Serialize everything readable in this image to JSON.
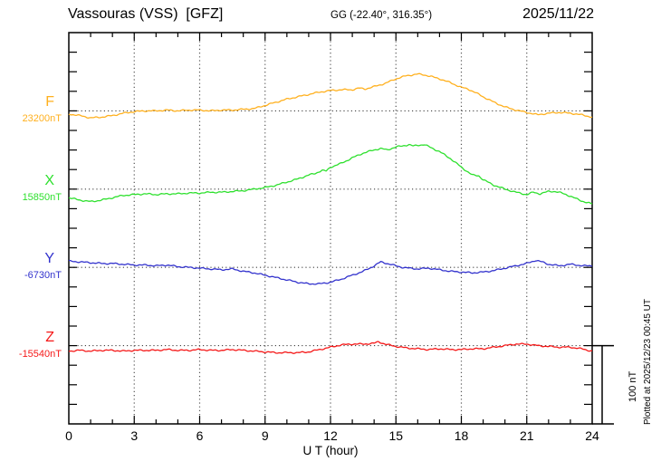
{
  "header": {
    "title": "Vassouras (VSS)  [GFZ]",
    "coordinates": "GG (-22.40°, 316.35°)",
    "date": "2025/11/22"
  },
  "axis": {
    "xlabel": "U T (hour)"
  },
  "scalebar": {
    "label": "100 nT",
    "nT": 100
  },
  "plotted_note": "Plotted at 2025/12/23 00:45 UT",
  "chart_data": {
    "type": "line",
    "title": "Vassouras (VSS)  [GFZ]",
    "subtitle": "GG (-22.40°, 316.35°)",
    "date": "2025/11/22",
    "xlabel": "U T (hour)",
    "x_range": [
      0,
      24
    ],
    "x_ticks": [
      0,
      3,
      6,
      9,
      12,
      15,
      18,
      21,
      24
    ],
    "x_minor_tick_hours": 1,
    "y_tick_interval_nT": 25,
    "scale_bar_nT": 100,
    "grid": "dotted vertical lines every 3 h; dotted horizontal baseline per channel",
    "legend_position": "left margin, one colored label per channel",
    "series": [
      {
        "name": "F",
        "label": "F",
        "base_label": "23200nT",
        "base_nT": 23200,
        "color": "#FFB01E",
        "points_hour_offset_nT": [
          [
            0,
            -4
          ],
          [
            0.5,
            -6
          ],
          [
            1,
            -9
          ],
          [
            1.5,
            -8
          ],
          [
            2,
            -6
          ],
          [
            2.5,
            -3
          ],
          [
            3,
            -1
          ],
          [
            3.5,
            0
          ],
          [
            4,
            0
          ],
          [
            4.5,
            1
          ],
          [
            5,
            0
          ],
          [
            5.5,
            1
          ],
          [
            6,
            1
          ],
          [
            6.5,
            0
          ],
          [
            7,
            1
          ],
          [
            7.5,
            1
          ],
          [
            8,
            2
          ],
          [
            8.5,
            3
          ],
          [
            9,
            7
          ],
          [
            9.5,
            11
          ],
          [
            10,
            15
          ],
          [
            10.5,
            18
          ],
          [
            11,
            21
          ],
          [
            11.5,
            24
          ],
          [
            12,
            26
          ],
          [
            12.5,
            27
          ],
          [
            13,
            27
          ],
          [
            13.3,
            29
          ],
          [
            13.6,
            28
          ],
          [
            14,
            31
          ],
          [
            14.5,
            35
          ],
          [
            15,
            41
          ],
          [
            15.5,
            45
          ],
          [
            16,
            47
          ],
          [
            16.3,
            46
          ],
          [
            16.6,
            44
          ],
          [
            17,
            41
          ],
          [
            17.5,
            36
          ],
          [
            18,
            30
          ],
          [
            18.3,
            28
          ],
          [
            18.6,
            24
          ],
          [
            19,
            18
          ],
          [
            19.5,
            11
          ],
          [
            20,
            5
          ],
          [
            20.5,
            1
          ],
          [
            21,
            -2
          ],
          [
            21.5,
            -5
          ],
          [
            22,
            -3
          ],
          [
            22.5,
            -2
          ],
          [
            23,
            -3
          ],
          [
            23.5,
            -5
          ],
          [
            24,
            -8
          ]
        ]
      },
      {
        "name": "X",
        "label": "X",
        "base_label": "15850nT",
        "base_nT": 15850,
        "color": "#2EE02E",
        "points_hour_offset_nT": [
          [
            0,
            -11
          ],
          [
            0.5,
            -14
          ],
          [
            1,
            -16
          ],
          [
            1.5,
            -14
          ],
          [
            2,
            -11
          ],
          [
            2.5,
            -8
          ],
          [
            3,
            -7
          ],
          [
            3.5,
            -6
          ],
          [
            4,
            -7
          ],
          [
            4.5,
            -6
          ],
          [
            5,
            -6
          ],
          [
            5.5,
            -5
          ],
          [
            6,
            -5
          ],
          [
            6.5,
            -4
          ],
          [
            7,
            -4
          ],
          [
            7.5,
            -3
          ],
          [
            8,
            -2
          ],
          [
            8.5,
            0
          ],
          [
            9,
            2
          ],
          [
            9.5,
            5
          ],
          [
            10,
            9
          ],
          [
            10.5,
            13
          ],
          [
            11,
            18
          ],
          [
            11.3,
            20
          ],
          [
            11.6,
            24
          ],
          [
            11.8,
            23
          ],
          [
            12,
            28
          ],
          [
            12.5,
            33
          ],
          [
            13,
            40
          ],
          [
            13.5,
            46
          ],
          [
            14,
            50
          ],
          [
            14.3,
            52
          ],
          [
            14.6,
            50
          ],
          [
            15,
            54
          ],
          [
            15.3,
            55
          ],
          [
            15.6,
            57
          ],
          [
            15.8,
            55
          ],
          [
            16,
            56
          ],
          [
            16.3,
            57
          ],
          [
            16.6,
            53
          ],
          [
            17,
            48
          ],
          [
            17.5,
            39
          ],
          [
            18,
            28
          ],
          [
            18.5,
            18
          ],
          [
            18.8,
            17
          ],
          [
            19,
            12
          ],
          [
            19.5,
            5
          ],
          [
            20,
            0
          ],
          [
            20.5,
            -4
          ],
          [
            21,
            -7
          ],
          [
            21.3,
            -4
          ],
          [
            21.6,
            -6
          ],
          [
            22,
            -3
          ],
          [
            22.3,
            -3
          ],
          [
            22.6,
            -5
          ],
          [
            23,
            -9
          ],
          [
            23.5,
            -15
          ],
          [
            24,
            -19
          ]
        ]
      },
      {
        "name": "Y",
        "label": "Y",
        "base_label": "-6730nT",
        "base_nT": -6730,
        "color": "#3232CD",
        "points_hour_offset_nT": [
          [
            0,
            8
          ],
          [
            0.5,
            7
          ],
          [
            1,
            6
          ],
          [
            1.5,
            5
          ],
          [
            2,
            5
          ],
          [
            2.5,
            4
          ],
          [
            3,
            3
          ],
          [
            3.5,
            3
          ],
          [
            4,
            2
          ],
          [
            4.5,
            3
          ],
          [
            5,
            1
          ],
          [
            5.5,
            0
          ],
          [
            6,
            -1
          ],
          [
            6.5,
            -2
          ],
          [
            7,
            -3
          ],
          [
            7.5,
            -2
          ],
          [
            8,
            -5
          ],
          [
            8.5,
            -7
          ],
          [
            9,
            -10
          ],
          [
            9.5,
            -13
          ],
          [
            10,
            -16
          ],
          [
            10.5,
            -19
          ],
          [
            11,
            -21
          ],
          [
            11.5,
            -21
          ],
          [
            12,
            -19
          ],
          [
            12.5,
            -15
          ],
          [
            13,
            -10
          ],
          [
            13.5,
            -5
          ],
          [
            13.8,
            -1
          ],
          [
            14,
            2
          ],
          [
            14.3,
            7
          ],
          [
            14.6,
            5
          ],
          [
            15,
            2
          ],
          [
            15.3,
            0
          ],
          [
            15.6,
            -1
          ],
          [
            16,
            -2
          ],
          [
            16.5,
            -1
          ],
          [
            17,
            -3
          ],
          [
            17.5,
            -5
          ],
          [
            18,
            -6
          ],
          [
            18.5,
            -7
          ],
          [
            19,
            -6
          ],
          [
            19.5,
            -4
          ],
          [
            20,
            -1
          ],
          [
            20.5,
            2
          ],
          [
            21,
            5
          ],
          [
            21.4,
            9
          ],
          [
            21.7,
            7
          ],
          [
            22,
            4
          ],
          [
            22.5,
            2
          ],
          [
            23,
            4
          ],
          [
            23.3,
            3
          ],
          [
            23.6,
            2
          ],
          [
            24,
            2
          ]
        ]
      },
      {
        "name": "Z",
        "label": "Z",
        "base_label": "-15540nT",
        "base_nT": -15540,
        "color": "#F51818",
        "points_hour_offset_nT": [
          [
            0,
            -7
          ],
          [
            0.5,
            -6
          ],
          [
            1,
            -7
          ],
          [
            1.5,
            -6
          ],
          [
            2,
            -6
          ],
          [
            2.5,
            -7
          ],
          [
            3,
            -6
          ],
          [
            3.5,
            -6
          ],
          [
            4,
            -6
          ],
          [
            4.5,
            -5
          ],
          [
            5,
            -6
          ],
          [
            5.5,
            -6
          ],
          [
            6,
            -5
          ],
          [
            6.5,
            -6
          ],
          [
            7,
            -6
          ],
          [
            7.5,
            -5
          ],
          [
            8,
            -6
          ],
          [
            8.5,
            -7
          ],
          [
            9,
            -8
          ],
          [
            9.5,
            -9
          ],
          [
            10,
            -9
          ],
          [
            10.5,
            -9
          ],
          [
            11,
            -8
          ],
          [
            11.5,
            -5
          ],
          [
            12,
            -2
          ],
          [
            12.5,
            1
          ],
          [
            13,
            2
          ],
          [
            13.5,
            2
          ],
          [
            14,
            3
          ],
          [
            14.2,
            5
          ],
          [
            14.5,
            2
          ],
          [
            15,
            -1
          ],
          [
            15.5,
            -3
          ],
          [
            16,
            -4
          ],
          [
            16.5,
            -5
          ],
          [
            17,
            -4
          ],
          [
            17.5,
            -5
          ],
          [
            18,
            -5
          ],
          [
            18.5,
            -4
          ],
          [
            19,
            -4
          ],
          [
            19.5,
            -2
          ],
          [
            20,
            0
          ],
          [
            20.5,
            2
          ],
          [
            21,
            2
          ],
          [
            21.5,
            0
          ],
          [
            22,
            -1
          ],
          [
            22.5,
            -2
          ],
          [
            23,
            -2
          ],
          [
            23.5,
            -4
          ],
          [
            24,
            -7
          ]
        ]
      }
    ]
  }
}
